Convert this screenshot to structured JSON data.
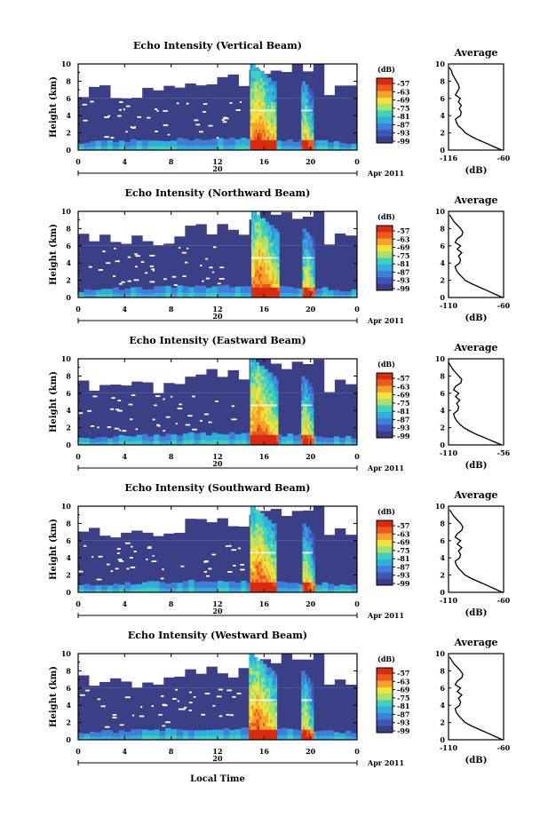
{
  "figure": {
    "xlabel": "Local Time",
    "date_label": "Apr 2011",
    "day_label": "20",
    "ylabel": "Height (km)",
    "colorbar_unit": "(dB)",
    "average_title": "Average",
    "average_xlabel": "(dB)"
  },
  "colors": {
    "background_fill": "#3b3f85",
    "colormap": [
      "#3a3d86",
      "#3f55b8",
      "#3f7fd8",
      "#31aee0",
      "#3fd0c0",
      "#a6e070",
      "#f2e33a",
      "#f5a22a",
      "#ec5a1e",
      "#d92a12"
    ]
  },
  "chart_data": [
    {
      "type": "heatmap",
      "title": "Echo Intensity (Vertical Beam)",
      "xlabel": "Local Time",
      "ylabel": "Height (km)",
      "x_ticks": [
        "0",
        "4",
        "8",
        "12",
        "16",
        "20",
        "0"
      ],
      "xlim": [
        0,
        24
      ],
      "y_ticks": [
        "0",
        "2",
        "4",
        "6",
        "8",
        "10"
      ],
      "ylim": [
        0,
        10
      ],
      "colorbar_ticks": [
        "-57",
        "-63",
        "-69",
        "-75",
        "-81",
        "-87",
        "-93",
        "-99"
      ],
      "strong_echo_periods_hours": [
        [
          14.8,
          17.0
        ],
        [
          19.2,
          20.2
        ]
      ],
      "average_profile": {
        "x_ticks": [
          "-116",
          "-60"
        ],
        "xlim": [
          -116,
          -60
        ],
        "ylim": [
          0,
          10
        ],
        "x_dB": [
          -62,
          -70,
          -78,
          -86,
          -93,
          -99,
          -102,
          -106,
          -108,
          -109,
          -104,
          -103,
          -105,
          -103,
          -106,
          -104,
          -109,
          -107,
          -105,
          -106,
          -108,
          -110,
          -112,
          -113,
          -115
        ],
        "height_km": [
          0,
          0.4,
          0.8,
          1.2,
          1.6,
          2.0,
          2.4,
          2.8,
          3.2,
          3.6,
          4.0,
          4.4,
          4.8,
          5.2,
          5.6,
          6.0,
          6.4,
          6.8,
          7.2,
          7.6,
          8.0,
          8.4,
          8.8,
          9.2,
          9.6
        ]
      }
    },
    {
      "type": "heatmap",
      "title": "Echo Intensity (Northward Beam)",
      "xlabel": "Local Time",
      "ylabel": "Height (km)",
      "x_ticks": [
        "0",
        "4",
        "8",
        "12",
        "16",
        "20",
        "0"
      ],
      "xlim": [
        0,
        24
      ],
      "y_ticks": [
        "0",
        "2",
        "4",
        "6",
        "8",
        "10"
      ],
      "ylim": [
        0,
        10
      ],
      "colorbar_ticks": [
        "-57",
        "-63",
        "-69",
        "-75",
        "-81",
        "-87",
        "-93",
        "-99"
      ],
      "strong_echo_periods_hours": [
        [
          14.9,
          17.2
        ],
        [
          19.3,
          20.3
        ]
      ],
      "average_profile": {
        "x_ticks": [
          "-110",
          "-60"
        ],
        "xlim": [
          -110,
          -60
        ],
        "ylim": [
          0,
          10
        ],
        "x_dB": [
          -61,
          -68,
          -75,
          -82,
          -89,
          -95,
          -98,
          -101,
          -103,
          -104,
          -100,
          -99,
          -101,
          -98,
          -102,
          -99,
          -104,
          -102,
          -98,
          -97,
          -99,
          -102,
          -105,
          -107,
          -109
        ],
        "height_km": [
          0,
          0.4,
          0.8,
          1.2,
          1.6,
          2.0,
          2.4,
          2.8,
          3.2,
          3.6,
          4.0,
          4.4,
          4.8,
          5.2,
          5.6,
          6.0,
          6.4,
          6.8,
          7.2,
          7.6,
          8.0,
          8.4,
          8.8,
          9.2,
          9.6
        ]
      }
    },
    {
      "type": "heatmap",
      "title": "Echo Intensity (Eastward Beam)",
      "xlabel": "Local Time",
      "ylabel": "Height (km)",
      "x_ticks": [
        "0",
        "4",
        "8",
        "12",
        "16",
        "20",
        "0"
      ],
      "xlim": [
        0,
        24
      ],
      "y_ticks": [
        "0",
        "2",
        "4",
        "6",
        "8",
        "10"
      ],
      "ylim": [
        0,
        10
      ],
      "colorbar_ticks": [
        "-57",
        "-63",
        "-69",
        "-75",
        "-81",
        "-87",
        "-93",
        "-99"
      ],
      "strong_echo_periods_hours": [
        [
          14.8,
          17.1
        ],
        [
          19.2,
          20.2
        ]
      ],
      "average_profile": {
        "x_ticks": [
          "-110",
          "-56"
        ],
        "xlim": [
          -110,
          -56
        ],
        "ylim": [
          0,
          10
        ],
        "x_dB": [
          -58,
          -66,
          -74,
          -82,
          -89,
          -95,
          -99,
          -102,
          -104,
          -105,
          -101,
          -100,
          -102,
          -99,
          -103,
          -100,
          -105,
          -103,
          -98,
          -97,
          -100,
          -103,
          -106,
          -108,
          -110
        ],
        "height_km": [
          0,
          0.4,
          0.8,
          1.2,
          1.6,
          2.0,
          2.4,
          2.8,
          3.2,
          3.6,
          4.0,
          4.4,
          4.8,
          5.2,
          5.6,
          6.0,
          6.4,
          6.8,
          7.2,
          7.6,
          8.0,
          8.4,
          8.8,
          9.2,
          9.6
        ]
      }
    },
    {
      "type": "heatmap",
      "title": "Echo Intensity (Southward Beam)",
      "xlabel": "Local Time",
      "ylabel": "Height (km)",
      "x_ticks": [
        "0",
        "4",
        "8",
        "12",
        "16",
        "20",
        "0"
      ],
      "xlim": [
        0,
        24
      ],
      "y_ticks": [
        "0",
        "2",
        "4",
        "6",
        "8",
        "10"
      ],
      "ylim": [
        0,
        10
      ],
      "colorbar_ticks": [
        "-57",
        "-63",
        "-69",
        "-75",
        "-81",
        "-87",
        "-93",
        "-99"
      ],
      "strong_echo_periods_hours": [
        [
          14.8,
          17.0
        ],
        [
          19.3,
          20.2
        ]
      ],
      "average_profile": {
        "x_ticks": [
          "-110",
          "-60"
        ],
        "xlim": [
          -110,
          -60
        ],
        "ylim": [
          0,
          10
        ],
        "x_dB": [
          -61,
          -68,
          -75,
          -82,
          -89,
          -95,
          -98,
          -101,
          -103,
          -104,
          -100,
          -99,
          -101,
          -98,
          -102,
          -99,
          -104,
          -102,
          -98,
          -97,
          -99,
          -102,
          -105,
          -107,
          -109
        ],
        "height_km": [
          0,
          0.4,
          0.8,
          1.2,
          1.6,
          2.0,
          2.4,
          2.8,
          3.2,
          3.6,
          4.0,
          4.4,
          4.8,
          5.2,
          5.6,
          6.0,
          6.4,
          6.8,
          7.2,
          7.6,
          8.0,
          8.4,
          8.8,
          9.2,
          9.6
        ]
      }
    },
    {
      "type": "heatmap",
      "title": "Echo Intensity (Westward Beam)",
      "xlabel": "Local Time",
      "ylabel": "Height (km)",
      "x_ticks": [
        "0",
        "4",
        "8",
        "12",
        "16",
        "20",
        "0"
      ],
      "xlim": [
        0,
        24
      ],
      "y_ticks": [
        "0",
        "2",
        "4",
        "6",
        "8",
        "10"
      ],
      "ylim": [
        0,
        10
      ],
      "colorbar_ticks": [
        "-57",
        "-63",
        "-69",
        "-75",
        "-81",
        "-87",
        "-93",
        "-99"
      ],
      "strong_echo_periods_hours": [
        [
          14.7,
          17.0
        ],
        [
          19.2,
          20.1
        ]
      ],
      "average_profile": {
        "x_ticks": [
          "-110",
          "-60"
        ],
        "xlim": [
          -110,
          -60
        ],
        "ylim": [
          0,
          10
        ],
        "x_dB": [
          -61,
          -68,
          -75,
          -82,
          -89,
          -95,
          -98,
          -101,
          -103,
          -104,
          -100,
          -99,
          -101,
          -98,
          -102,
          -99,
          -104,
          -102,
          -98,
          -97,
          -99,
          -102,
          -105,
          -107,
          -109
        ],
        "height_km": [
          0,
          0.4,
          0.8,
          1.2,
          1.6,
          2.0,
          2.4,
          2.8,
          3.2,
          3.6,
          4.0,
          4.4,
          4.8,
          5.2,
          5.6,
          6.0,
          6.4,
          6.8,
          7.2,
          7.6,
          8.0,
          8.4,
          8.8,
          9.2,
          9.6
        ]
      }
    }
  ]
}
